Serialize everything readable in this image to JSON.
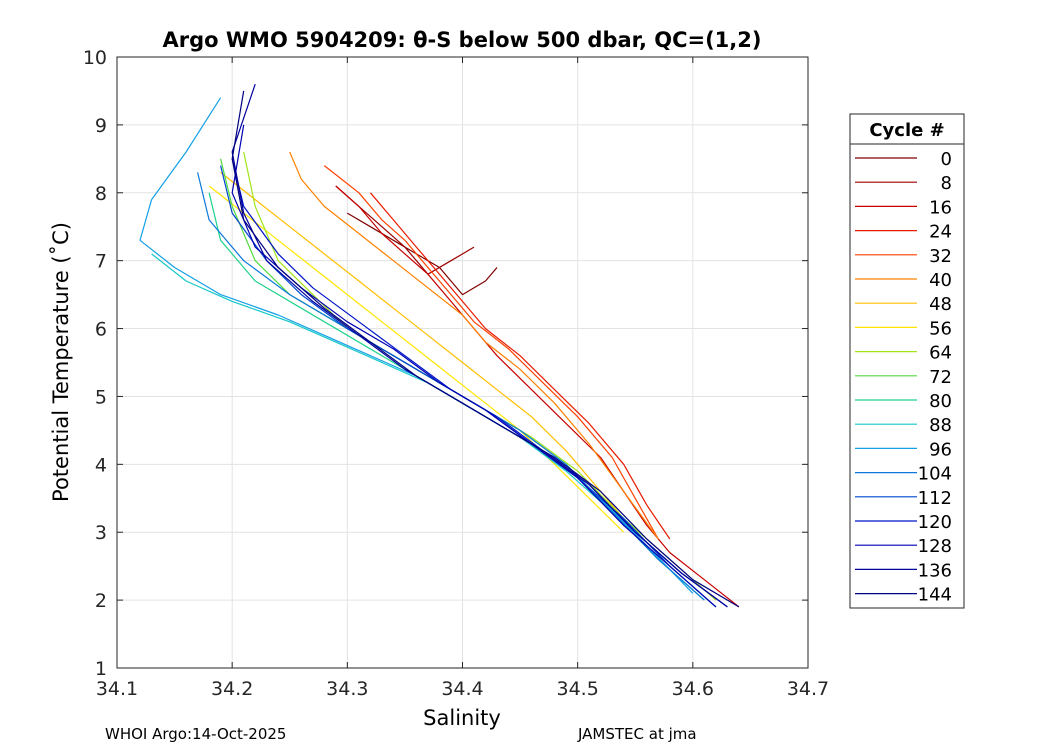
{
  "chart_data": {
    "type": "line",
    "title": "Argo WMO 5904209: θ-S below 500 dbar,  QC=(1,2)",
    "xlabel": "Salinity",
    "ylabel": "Potential Temperature (˚C)",
    "xlim": [
      34.1,
      34.7
    ],
    "ylim": [
      1,
      10
    ],
    "xticks": [
      "34.1",
      "34.2",
      "34.3",
      "34.4",
      "34.5",
      "34.6",
      "34.7"
    ],
    "yticks": [
      "1",
      "2",
      "3",
      "4",
      "5",
      "6",
      "7",
      "8",
      "9",
      "10"
    ],
    "grid": true,
    "legend": {
      "title": "Cycle #",
      "placement": "right",
      "entries": [
        "0",
        "8",
        "16",
        "24",
        "32",
        "40",
        "48",
        "56",
        "64",
        "72",
        "80",
        "88",
        "96",
        "104",
        "112",
        "120",
        "128",
        "136",
        "144"
      ],
      "colors": [
        "#7f0000",
        "#9e0000",
        "#c80000",
        "#e81a00",
        "#ff4000",
        "#ff8000",
        "#ffbf00",
        "#ffe600",
        "#a0e61a",
        "#50dc3c",
        "#1ed28c",
        "#14c8c8",
        "#14a0e6",
        "#0a78dc",
        "#0046d2",
        "#0014c8",
        "#0000b4",
        "#00009e",
        "#000080"
      ]
    },
    "series": [
      {
        "name": "0",
        "color": "#7f0000",
        "x": [
          34.43,
          34.42,
          34.4,
          34.38,
          34.36,
          34.34,
          34.32,
          34.3
        ],
        "y": [
          6.9,
          6.7,
          6.5,
          6.9,
          7.1,
          7.3,
          7.5,
          7.7
        ]
      },
      {
        "name": "8",
        "color": "#9e0000",
        "x": [
          34.41,
          34.39,
          34.37,
          34.35,
          34.33,
          34.31,
          34.29
        ],
        "y": [
          7.2,
          7.0,
          6.8,
          7.2,
          7.5,
          7.8,
          8.1
        ]
      },
      {
        "name": "16",
        "color": "#c80000",
        "x": [
          34.64,
          34.61,
          34.58,
          34.56,
          34.54,
          34.52,
          34.49,
          34.46,
          34.43,
          34.41,
          34.39,
          34.37,
          34.35,
          34.33,
          34.31,
          34.29
        ],
        "y": [
          1.9,
          2.3,
          2.7,
          3.1,
          3.6,
          4.1,
          4.6,
          5.1,
          5.6,
          6.0,
          6.4,
          6.8,
          7.1,
          7.4,
          7.8,
          8.1
        ]
      },
      {
        "name": "24",
        "color": "#e81a00",
        "x": [
          34.58,
          34.56,
          34.54,
          34.51,
          34.48,
          34.45,
          34.42,
          34.4,
          34.38,
          34.36,
          34.34,
          34.32
        ],
        "y": [
          2.9,
          3.4,
          4.0,
          4.6,
          5.1,
          5.6,
          6.0,
          6.4,
          6.8,
          7.2,
          7.6,
          8.0
        ]
      },
      {
        "name": "32",
        "color": "#ff4000",
        "x": [
          34.57,
          34.55,
          34.53,
          34.5,
          34.47,
          34.44,
          34.41,
          34.39,
          34.37,
          34.35,
          34.33,
          34.31,
          34.28
        ],
        "y": [
          2.9,
          3.5,
          4.1,
          4.7,
          5.2,
          5.7,
          6.1,
          6.5,
          6.9,
          7.3,
          7.6,
          8.0,
          8.4
        ]
      },
      {
        "name": "40",
        "color": "#ff8000",
        "x": [
          34.57,
          34.54,
          34.51,
          34.48,
          34.45,
          34.42,
          34.4,
          34.37,
          34.34,
          34.31,
          34.28,
          34.26,
          34.25
        ],
        "y": [
          2.9,
          3.6,
          4.3,
          4.9,
          5.4,
          5.8,
          6.2,
          6.6,
          7.0,
          7.4,
          7.8,
          8.2,
          8.6
        ]
      },
      {
        "name": "48",
        "color": "#ffbf00",
        "x": [
          34.55,
          34.52,
          34.49,
          34.46,
          34.43,
          34.4,
          34.37,
          34.34,
          34.31,
          34.28,
          34.25,
          34.22,
          34.19
        ],
        "y": [
          3.0,
          3.6,
          4.2,
          4.7,
          5.1,
          5.5,
          5.9,
          6.3,
          6.7,
          7.1,
          7.5,
          7.9,
          8.3
        ]
      },
      {
        "name": "56",
        "color": "#ffe600",
        "x": [
          34.54,
          34.51,
          34.48,
          34.45,
          34.42,
          34.39,
          34.36,
          34.33,
          34.3,
          34.27,
          34.24,
          34.21,
          34.18
        ],
        "y": [
          3.0,
          3.5,
          4.0,
          4.5,
          4.9,
          5.3,
          5.7,
          6.1,
          6.5,
          6.9,
          7.3,
          7.7,
          8.1
        ]
      },
      {
        "name": "64",
        "color": "#a0e61a",
        "x": [
          34.62,
          34.58,
          34.54,
          34.5,
          34.46,
          34.42,
          34.38,
          34.34,
          34.3,
          34.27,
          34.24,
          34.22,
          34.21
        ],
        "y": [
          2.0,
          2.6,
          3.2,
          3.9,
          4.4,
          4.8,
          5.2,
          5.6,
          6.0,
          6.5,
          7.0,
          7.8,
          8.6
        ]
      },
      {
        "name": "72",
        "color": "#50dc3c",
        "x": [
          34.61,
          34.57,
          34.53,
          34.49,
          34.45,
          34.41,
          34.37,
          34.33,
          34.29,
          34.25,
          34.22,
          34.2,
          34.19
        ],
        "y": [
          2.0,
          2.6,
          3.3,
          4.0,
          4.5,
          4.9,
          5.3,
          5.7,
          6.1,
          6.5,
          7.0,
          7.8,
          8.5
        ]
      },
      {
        "name": "80",
        "color": "#1ed28c",
        "x": [
          34.62,
          34.58,
          34.54,
          34.5,
          34.46,
          34.42,
          34.38,
          34.34,
          34.3,
          34.26,
          34.22,
          34.19,
          34.18
        ],
        "y": [
          1.9,
          2.5,
          3.2,
          3.8,
          4.3,
          4.7,
          5.1,
          5.5,
          5.9,
          6.3,
          6.7,
          7.3,
          8.0
        ]
      },
      {
        "name": "88",
        "color": "#14c8c8",
        "x": [
          34.61,
          34.57,
          34.53,
          34.49,
          34.45,
          34.41,
          34.37,
          34.33,
          34.29,
          34.25,
          34.2,
          34.16,
          34.13
        ],
        "y": [
          2.0,
          2.6,
          3.3,
          3.9,
          4.4,
          4.8,
          5.2,
          5.5,
          5.8,
          6.1,
          6.4,
          6.7,
          7.1
        ]
      },
      {
        "name": "96",
        "color": "#14a0e6",
        "x": [
          34.6,
          34.56,
          34.52,
          34.48,
          34.44,
          34.4,
          34.36,
          34.32,
          34.28,
          34.24,
          34.19,
          34.15,
          34.12,
          34.13,
          34.16,
          34.19
        ],
        "y": [
          2.1,
          2.8,
          3.5,
          4.1,
          4.5,
          4.9,
          5.3,
          5.6,
          5.9,
          6.2,
          6.5,
          6.9,
          7.3,
          7.9,
          8.6,
          9.4
        ]
      },
      {
        "name": "104",
        "color": "#0a78dc",
        "x": [
          34.61,
          34.57,
          34.53,
          34.49,
          34.45,
          34.41,
          34.37,
          34.33,
          34.29,
          34.25,
          34.21,
          34.18,
          34.17
        ],
        "y": [
          2.0,
          2.6,
          3.3,
          4.0,
          4.5,
          4.9,
          5.3,
          5.7,
          6.1,
          6.5,
          7.0,
          7.6,
          8.3
        ]
      },
      {
        "name": "112",
        "color": "#0046d2",
        "x": [
          34.62,
          34.58,
          34.54,
          34.5,
          34.46,
          34.42,
          34.38,
          34.34,
          34.3,
          34.26,
          34.23,
          34.2,
          34.19
        ],
        "y": [
          1.9,
          2.5,
          3.2,
          3.8,
          4.3,
          4.8,
          5.2,
          5.6,
          6.0,
          6.5,
          7.0,
          7.7,
          8.4
        ]
      },
      {
        "name": "120",
        "color": "#0014c8",
        "x": [
          34.63,
          34.59,
          34.55,
          34.51,
          34.47,
          34.43,
          34.39,
          34.35,
          34.31,
          34.27,
          34.24,
          34.21,
          34.2
        ],
        "y": [
          1.9,
          2.4,
          3.0,
          3.7,
          4.2,
          4.7,
          5.1,
          5.6,
          6.1,
          6.6,
          7.1,
          7.8,
          8.5
        ]
      },
      {
        "name": "128",
        "color": "#0000b4",
        "x": [
          34.62,
          34.58,
          34.54,
          34.5,
          34.46,
          34.42,
          34.38,
          34.34,
          34.3,
          34.26,
          34.22,
          34.2,
          34.21
        ],
        "y": [
          1.9,
          2.5,
          3.1,
          3.8,
          4.3,
          4.8,
          5.2,
          5.7,
          6.1,
          6.6,
          7.2,
          8.0,
          9.0
        ]
      },
      {
        "name": "136",
        "color": "#00009e",
        "x": [
          34.63,
          34.59,
          34.55,
          34.51,
          34.47,
          34.43,
          34.39,
          34.35,
          34.31,
          34.27,
          34.23,
          34.21,
          34.2,
          34.22
        ],
        "y": [
          1.9,
          2.4,
          3.0,
          3.7,
          4.2,
          4.6,
          5.0,
          5.4,
          5.9,
          6.4,
          7.0,
          7.7,
          8.6,
          9.6
        ]
      },
      {
        "name": "144",
        "color": "#000080",
        "x": [
          34.64,
          34.6,
          34.56,
          34.52,
          34.48,
          34.44,
          34.4,
          34.36,
          34.32,
          34.28,
          34.24,
          34.21,
          34.2,
          34.21
        ],
        "y": [
          1.9,
          2.3,
          2.9,
          3.6,
          4.1,
          4.5,
          4.9,
          5.3,
          5.8,
          6.3,
          6.9,
          7.6,
          8.5,
          9.5
        ]
      }
    ]
  },
  "footer": {
    "left": "WHOI Argo:14-Oct-2025",
    "right": "JAMSTEC at jma"
  }
}
